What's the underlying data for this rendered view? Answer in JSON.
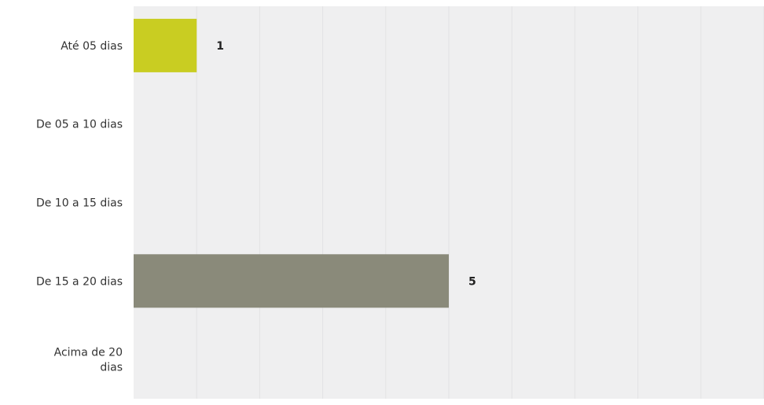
{
  "chart_data": {
    "type": "bar",
    "orientation": "horizontal",
    "categories": [
      [
        "Até 05 dias"
      ],
      [
        "De 05 a 10 dias"
      ],
      [
        "De 10 a 15 dias"
      ],
      [
        "De 15 a 20 dias"
      ],
      [
        "Acima de 20",
        "dias"
      ]
    ],
    "values": [
      1,
      0,
      0,
      5,
      0
    ],
    "data_labels": [
      "1",
      "",
      "",
      "5",
      ""
    ],
    "bar_colors": [
      "#c9cd22",
      "#b2b2a0",
      "#b2b2a0",
      "#8a8a7a",
      "#b2b2a0"
    ],
    "xlim": [
      0,
      10
    ],
    "grid": true,
    "background": "#efeff0",
    "grid_color": "#e2e2e4"
  }
}
